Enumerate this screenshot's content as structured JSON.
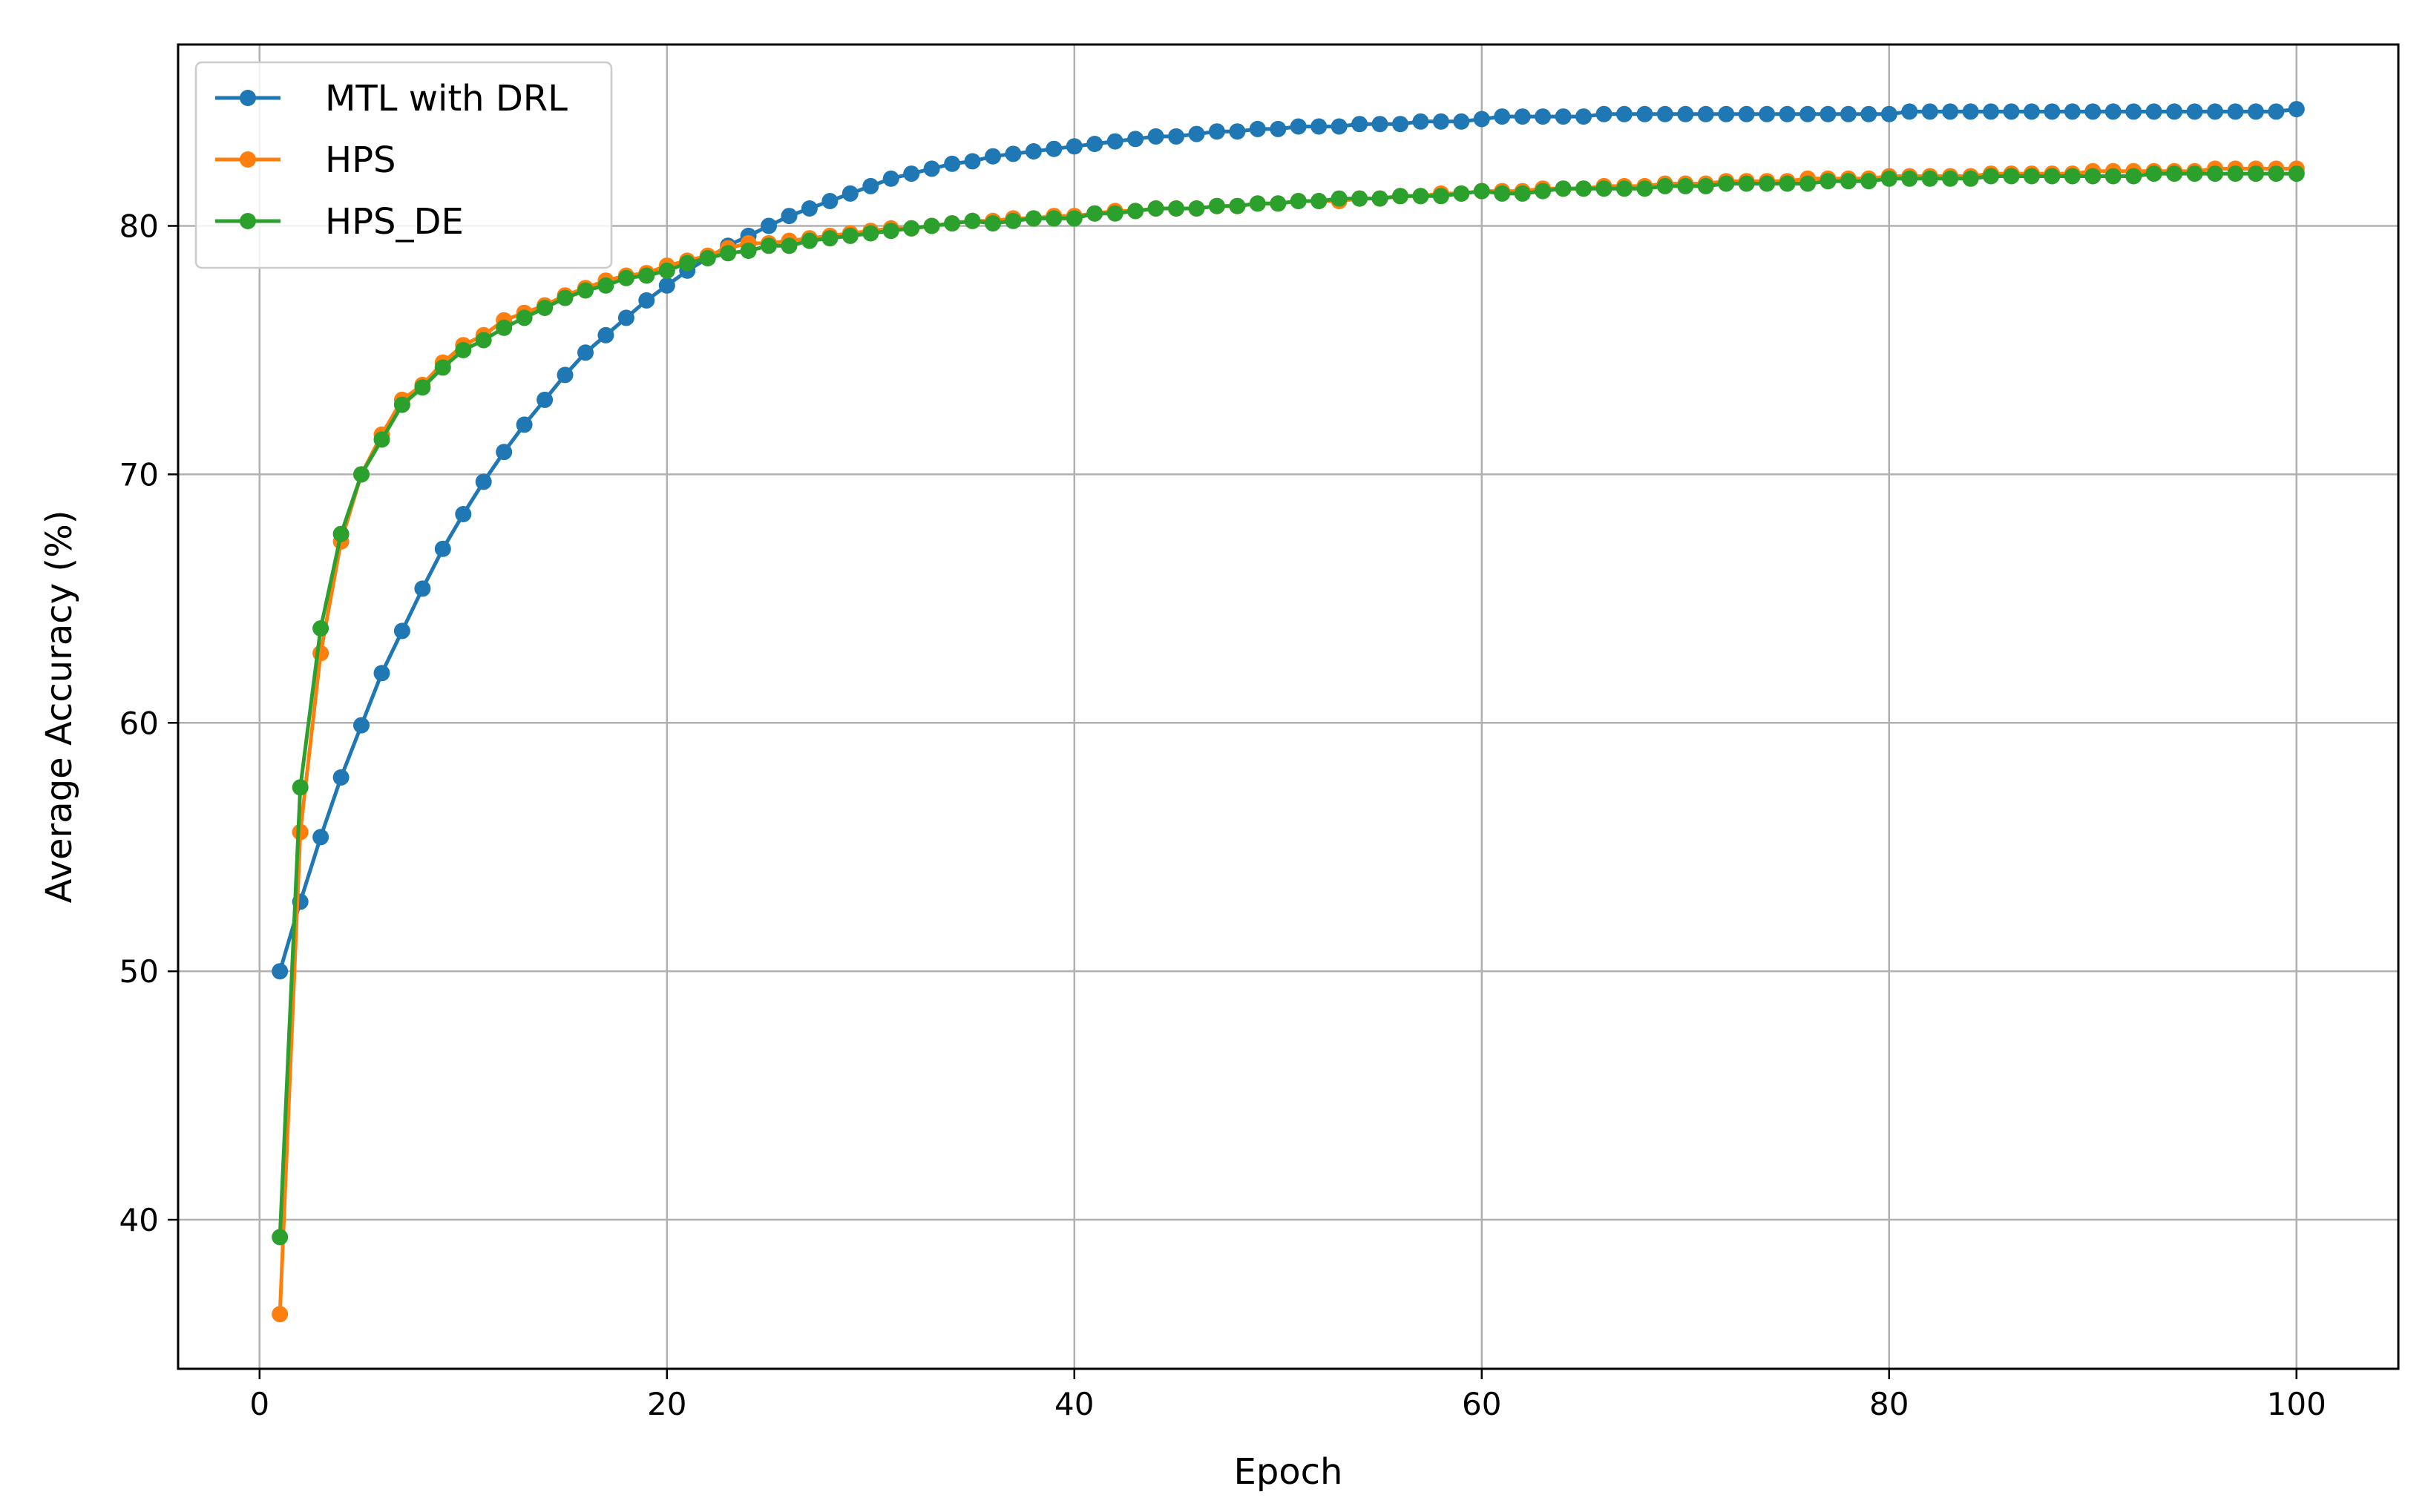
{
  "chart_data": {
    "type": "line",
    "title": "",
    "xlabel": "Epoch",
    "ylabel": "Average Accuracy (%)",
    "xlim": [
      -4,
      105
    ],
    "ylim": [
      34,
      87.3
    ],
    "x_ticks": [
      0,
      20,
      40,
      60,
      80,
      100
    ],
    "y_ticks": [
      40,
      50,
      60,
      70,
      80
    ],
    "grid": true,
    "legend_position": "top-left",
    "x": [
      1,
      2,
      3,
      4,
      5,
      6,
      7,
      8,
      9,
      10,
      11,
      12,
      13,
      14,
      15,
      16,
      17,
      18,
      19,
      20,
      21,
      22,
      23,
      24,
      25,
      26,
      27,
      28,
      29,
      30,
      31,
      32,
      33,
      34,
      35,
      36,
      37,
      38,
      39,
      40,
      41,
      42,
      43,
      44,
      45,
      46,
      47,
      48,
      49,
      50,
      51,
      52,
      53,
      54,
      55,
      56,
      57,
      58,
      59,
      60,
      61,
      62,
      63,
      64,
      65,
      66,
      67,
      68,
      69,
      70,
      71,
      72,
      73,
      74,
      75,
      76,
      77,
      78,
      79,
      80,
      81,
      82,
      83,
      84,
      85,
      86,
      87,
      88,
      89,
      90,
      91,
      92,
      93,
      94,
      95,
      96,
      97,
      98,
      99,
      100
    ],
    "series": [
      {
        "name": "MTL with DRL",
        "color": "#1f77b4",
        "values": [
          50.0,
          52.8,
          55.4,
          57.8,
          59.9,
          62.0,
          63.7,
          65.4,
          67.0,
          68.4,
          69.7,
          70.9,
          72.0,
          73.0,
          74.0,
          74.9,
          75.6,
          76.3,
          77.0,
          77.6,
          78.2,
          78.7,
          79.2,
          79.6,
          80.0,
          80.4,
          80.7,
          81.0,
          81.3,
          81.6,
          81.9,
          82.1,
          82.3,
          82.5,
          82.6,
          82.8,
          82.9,
          83.0,
          83.1,
          83.2,
          83.3,
          83.4,
          83.5,
          83.6,
          83.6,
          83.7,
          83.8,
          83.8,
          83.9,
          83.9,
          84.0,
          84.0,
          84.0,
          84.1,
          84.1,
          84.1,
          84.2,
          84.2,
          84.2,
          84.3,
          84.4,
          84.4,
          84.4,
          84.4,
          84.4,
          84.5,
          84.5,
          84.5,
          84.5,
          84.5,
          84.5,
          84.5,
          84.5,
          84.5,
          84.5,
          84.5,
          84.5,
          84.5,
          84.5,
          84.5,
          84.6,
          84.6,
          84.6,
          84.6,
          84.6,
          84.6,
          84.6,
          84.6,
          84.6,
          84.6,
          84.6,
          84.6,
          84.6,
          84.6,
          84.6,
          84.6,
          84.6,
          84.6,
          84.6,
          84.7
        ]
      },
      {
        "name": "HPS",
        "color": "#ff7f0e",
        "values": [
          36.2,
          55.6,
          62.8,
          67.3,
          70.0,
          71.6,
          73.0,
          73.6,
          74.5,
          75.2,
          75.6,
          76.2,
          76.5,
          76.8,
          77.2,
          77.5,
          77.8,
          78.0,
          78.1,
          78.4,
          78.6,
          78.8,
          79.1,
          79.3,
          79.3,
          79.4,
          79.5,
          79.6,
          79.7,
          79.8,
          79.9,
          79.9,
          80.0,
          80.1,
          80.2,
          80.2,
          80.3,
          80.3,
          80.4,
          80.4,
          80.5,
          80.6,
          80.6,
          80.7,
          80.7,
          80.7,
          80.8,
          80.8,
          80.9,
          80.9,
          81.0,
          81.0,
          81.0,
          81.1,
          81.1,
          81.2,
          81.2,
          81.3,
          81.3,
          81.4,
          81.4,
          81.4,
          81.5,
          81.5,
          81.5,
          81.6,
          81.6,
          81.6,
          81.7,
          81.7,
          81.7,
          81.8,
          81.8,
          81.8,
          81.8,
          81.9,
          81.9,
          81.9,
          81.9,
          82.0,
          82.0,
          82.0,
          82.0,
          82.0,
          82.1,
          82.1,
          82.1,
          82.1,
          82.1,
          82.2,
          82.2,
          82.2,
          82.2,
          82.2,
          82.2,
          82.3,
          82.3,
          82.3,
          82.3,
          82.3
        ]
      },
      {
        "name": "HPS_DE",
        "color": "#2ca02c",
        "values": [
          39.3,
          57.4,
          63.8,
          67.6,
          70.0,
          71.4,
          72.8,
          73.5,
          74.3,
          75.0,
          75.4,
          75.9,
          76.3,
          76.7,
          77.1,
          77.4,
          77.6,
          77.9,
          78.0,
          78.2,
          78.5,
          78.7,
          78.9,
          79.0,
          79.2,
          79.2,
          79.4,
          79.5,
          79.6,
          79.7,
          79.8,
          79.9,
          80.0,
          80.1,
          80.2,
          80.1,
          80.2,
          80.3,
          80.3,
          80.3,
          80.5,
          80.5,
          80.6,
          80.7,
          80.7,
          80.7,
          80.8,
          80.8,
          80.9,
          80.9,
          81.0,
          81.0,
          81.1,
          81.1,
          81.1,
          81.2,
          81.2,
          81.2,
          81.3,
          81.4,
          81.3,
          81.3,
          81.4,
          81.5,
          81.5,
          81.5,
          81.5,
          81.5,
          81.6,
          81.6,
          81.6,
          81.7,
          81.7,
          81.7,
          81.7,
          81.7,
          81.8,
          81.8,
          81.8,
          81.9,
          81.9,
          81.9,
          81.9,
          81.9,
          82.0,
          82.0,
          82.0,
          82.0,
          82.0,
          82.0,
          82.0,
          82.0,
          82.1,
          82.1,
          82.1,
          82.1,
          82.1,
          82.1,
          82.1,
          82.1
        ]
      }
    ]
  }
}
